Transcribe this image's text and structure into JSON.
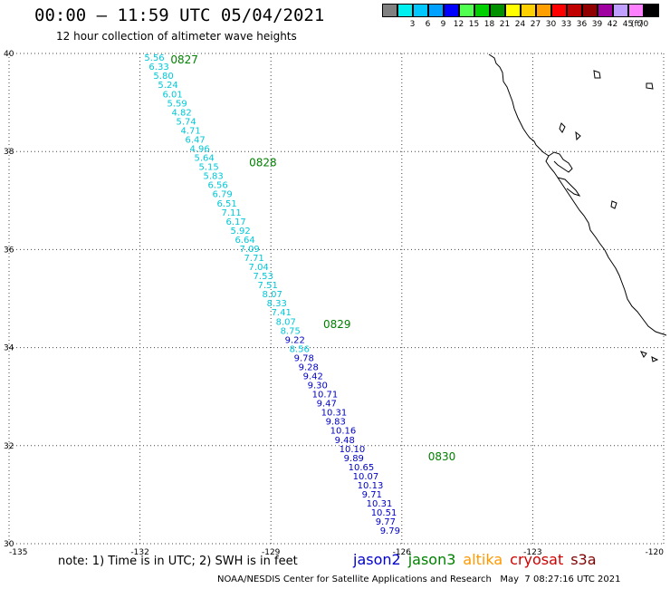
{
  "header": {
    "title": "00:00 – 11:59 UTC 05/04/2021",
    "subtitle": "12 hour collection of altimeter wave heights"
  },
  "color_scale": {
    "unit": "(ft)",
    "levels": [
      {
        "label": "",
        "color": "#808080"
      },
      {
        "label": "3",
        "color": "#00f0f0"
      },
      {
        "label": "6",
        "color": "#00c8ff"
      },
      {
        "label": "9",
        "color": "#00a0ff"
      },
      {
        "label": "12",
        "color": "#0000ff"
      },
      {
        "label": "15",
        "color": "#50ff50"
      },
      {
        "label": "18",
        "color": "#00d000"
      },
      {
        "label": "21",
        "color": "#009000"
      },
      {
        "label": "24",
        "color": "#ffff00"
      },
      {
        "label": "27",
        "color": "#ffd000"
      },
      {
        "label": "30",
        "color": "#ffa000"
      },
      {
        "label": "33",
        "color": "#ff0000"
      },
      {
        "label": "36",
        "color": "#c00000"
      },
      {
        "label": "39",
        "color": "#900000"
      },
      {
        "label": "42",
        "color": "#a000a0"
      },
      {
        "label": "45",
        "color": "#c0a0ff"
      },
      {
        "label": "70",
        "color": "#ff80ff"
      },
      {
        "label": "",
        "color": "#000000"
      }
    ]
  },
  "chart_data": {
    "type": "scatter",
    "xlim": [
      -135,
      -120
    ],
    "ylim": [
      30,
      40
    ],
    "x_ticks": [
      "-135",
      "-132",
      "-129",
      "-126",
      "-123",
      "-120"
    ],
    "y_ticks": [
      "30",
      "32",
      "34",
      "36",
      "38",
      "40"
    ],
    "grid": true,
    "track": {
      "satellite": "jason2",
      "start": [
        -131.9,
        39.85
      ],
      "end": [
        -126.5,
        30.2
      ],
      "points": [
        {
          "value": "5.56",
          "color": "#00c8d8"
        },
        {
          "value": "6.33",
          "color": "#00c8d8"
        },
        {
          "value": "5.80",
          "color": "#00c8d8"
        },
        {
          "value": "5.24",
          "color": "#00c8d8"
        },
        {
          "value": "6.01",
          "color": "#00c8d8"
        },
        {
          "value": "5.59",
          "color": "#00c8d8"
        },
        {
          "value": "4.82",
          "color": "#00c8d8"
        },
        {
          "value": "5.74",
          "color": "#00c8d8"
        },
        {
          "value": "4.71",
          "color": "#00c8d8"
        },
        {
          "value": "6.47",
          "color": "#00c8d8"
        },
        {
          "value": "4.96",
          "color": "#00c8d8"
        },
        {
          "value": "5.64",
          "color": "#00c8d8"
        },
        {
          "value": "5.15",
          "color": "#00c8d8"
        },
        {
          "value": "5.83",
          "color": "#00c8d8"
        },
        {
          "value": "6.56",
          "color": "#00c8d8"
        },
        {
          "value": "6.79",
          "color": "#00c8d8"
        },
        {
          "value": "6.51",
          "color": "#00c8d8"
        },
        {
          "value": "7.11",
          "color": "#00c8d8"
        },
        {
          "value": "6.17",
          "color": "#00c8d8"
        },
        {
          "value": "5.92",
          "color": "#00c8d8"
        },
        {
          "value": "6.64",
          "color": "#00c8d8"
        },
        {
          "value": "7.09",
          "color": "#00c8d8"
        },
        {
          "value": "7.71",
          "color": "#00c8d8"
        },
        {
          "value": "7.04",
          "color": "#00c8d8"
        },
        {
          "value": "7.53",
          "color": "#00c8d8"
        },
        {
          "value": "7.51",
          "color": "#00c8d8"
        },
        {
          "value": "8.07",
          "color": "#00c8d8"
        },
        {
          "value": "8.33",
          "color": "#00c8d8"
        },
        {
          "value": "7.41",
          "color": "#00c8d8"
        },
        {
          "value": "8.07",
          "color": "#00c8d8"
        },
        {
          "value": "8.75",
          "color": "#00c8d8"
        },
        {
          "value": "9.22",
          "color": "#0000c8"
        },
        {
          "value": "8.56",
          "color": "#00c8d8"
        },
        {
          "value": "9.78",
          "color": "#0000c8"
        },
        {
          "value": "9.28",
          "color": "#0000c8"
        },
        {
          "value": "9.42",
          "color": "#0000c8"
        },
        {
          "value": "9.30",
          "color": "#0000c8"
        },
        {
          "value": "10.71",
          "color": "#0000c8"
        },
        {
          "value": "9.47",
          "color": "#0000c8"
        },
        {
          "value": "10.31",
          "color": "#0000c8"
        },
        {
          "value": "9.83",
          "color": "#0000c8"
        },
        {
          "value": "10.16",
          "color": "#0000c8"
        },
        {
          "value": "9.48",
          "color": "#0000c8"
        },
        {
          "value": "10.10",
          "color": "#0000c8"
        },
        {
          "value": "9.89",
          "color": "#0000c8"
        },
        {
          "value": "10.65",
          "color": "#0000c8"
        },
        {
          "value": "10.07",
          "color": "#0000c8"
        },
        {
          "value": "10.13",
          "color": "#0000c8"
        },
        {
          "value": "9.71",
          "color": "#0000c8"
        },
        {
          "value": "10.31",
          "color": "#0000c8"
        },
        {
          "value": "10.51",
          "color": "#0000c8"
        },
        {
          "value": "9.77",
          "color": "#0000c8"
        },
        {
          "value": "9.79",
          "color": "#0000c8"
        }
      ],
      "time_labels": [
        {
          "text": "0827",
          "lon": -131.3,
          "lat": 39.8
        },
        {
          "text": "0828",
          "lon": -129.5,
          "lat": 37.7
        },
        {
          "text": "0829",
          "lon": -127.8,
          "lat": 34.4
        },
        {
          "text": "0830",
          "lon": -125.4,
          "lat": 31.7
        }
      ]
    }
  },
  "note": "note: 1) Time is in UTC; 2) SWH is in feet",
  "legend": [
    {
      "name": "jason2",
      "color": "#0000d0"
    },
    {
      "name": "jason3",
      "color": "#008000"
    },
    {
      "name": "altika",
      "color": "#ff9900"
    },
    {
      "name": "cryosat",
      "color": "#d00000"
    },
    {
      "name": "s3a",
      "color": "#800000"
    }
  ],
  "footer": "NOAA/NESDIS Center for Satellite Applications and Research   May  7 08:27:16 UTC 2021"
}
